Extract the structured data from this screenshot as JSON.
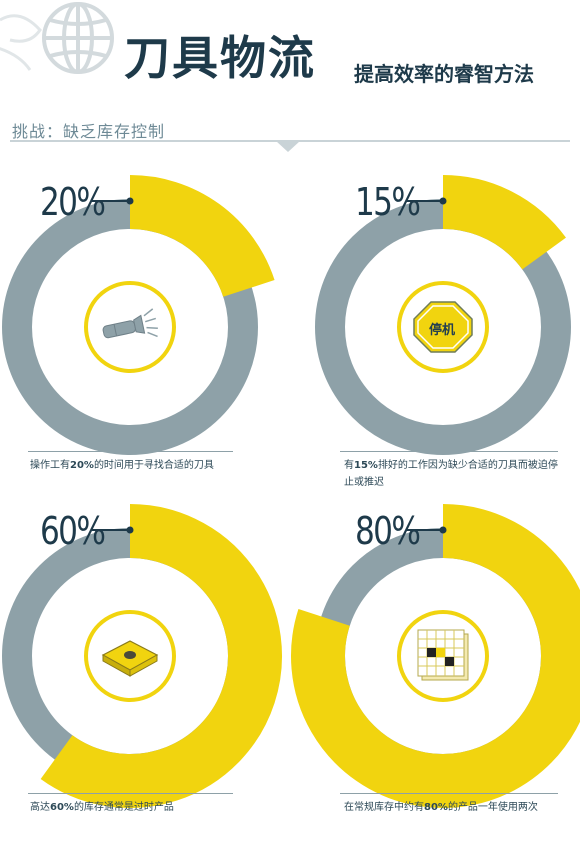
{
  "header": {
    "title": "刀具物流",
    "subtitle": "提高效率的睿智方法",
    "challenge": "挑战：缺乏库存控制"
  },
  "colors": {
    "yellow": "#f1d40f",
    "gray": "#8ea1a8",
    "navy": "#1e3a4a",
    "rule": "#c9d3d7"
  },
  "stats": [
    {
      "percent_label": "20%",
      "value": 20,
      "icon": "flashlight-icon",
      "caption_pre": "操作工有",
      "caption_bold": "20%",
      "caption_post": "的时间用于寻找合适的刀具"
    },
    {
      "percent_label": "15%",
      "value": 15,
      "icon": "stop-sign-icon",
      "icon_text": "停机",
      "caption_pre": "有",
      "caption_bold": "15%",
      "caption_post": "排好的工作因为缺少合适的刀具而被迫停止或推迟"
    },
    {
      "percent_label": "60%",
      "value": 60,
      "icon": "tool-insert-icon",
      "caption_pre": "高达",
      "caption_bold": "60%",
      "caption_post": "的库存通常是过时产品"
    },
    {
      "percent_label": "80%",
      "value": 80,
      "icon": "calendar-grid-icon",
      "caption_pre": "在常规库存中约有",
      "caption_bold": "80%",
      "caption_post": "的产品一年使用两次"
    }
  ]
}
